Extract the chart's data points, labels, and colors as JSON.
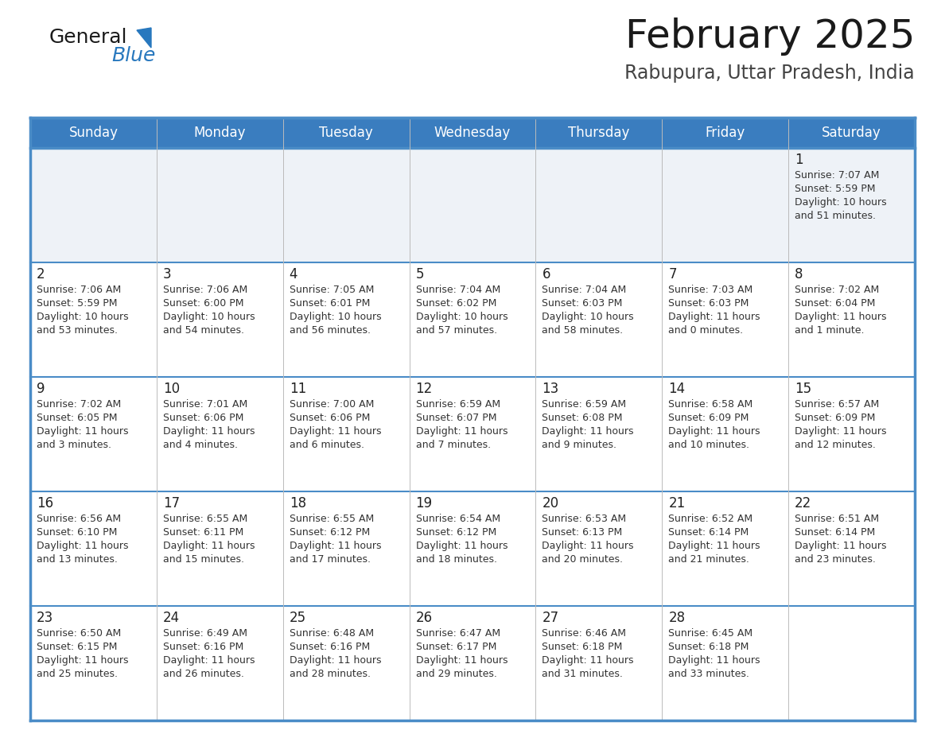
{
  "title": "February 2025",
  "subtitle": "Rabupura, Uttar Pradesh, India",
  "days_of_week": [
    "Sunday",
    "Monday",
    "Tuesday",
    "Wednesday",
    "Thursday",
    "Friday",
    "Saturday"
  ],
  "header_bg": "#3a7dbf",
  "header_text": "#ffffff",
  "cell_bg_alt": "#eef2f7",
  "cell_bg_white": "#ffffff",
  "separator_color": "#4a8cc7",
  "text_color": "#333333",
  "day_num_color": "#222222",
  "title_color": "#1a1a1a",
  "subtitle_color": "#444444",
  "logo_general_color": "#1a1a1a",
  "logo_blue_color": "#2878be",
  "calendar_data": [
    [
      null,
      null,
      null,
      null,
      null,
      null,
      {
        "day": 1,
        "sunrise": "7:07 AM",
        "sunset": "5:59 PM",
        "daylight_line1": "10 hours",
        "daylight_line2": "and 51 minutes."
      }
    ],
    [
      {
        "day": 2,
        "sunrise": "7:06 AM",
        "sunset": "5:59 PM",
        "daylight_line1": "10 hours",
        "daylight_line2": "and 53 minutes."
      },
      {
        "day": 3,
        "sunrise": "7:06 AM",
        "sunset": "6:00 PM",
        "daylight_line1": "10 hours",
        "daylight_line2": "and 54 minutes."
      },
      {
        "day": 4,
        "sunrise": "7:05 AM",
        "sunset": "6:01 PM",
        "daylight_line1": "10 hours",
        "daylight_line2": "and 56 minutes."
      },
      {
        "day": 5,
        "sunrise": "7:04 AM",
        "sunset": "6:02 PM",
        "daylight_line1": "10 hours",
        "daylight_line2": "and 57 minutes."
      },
      {
        "day": 6,
        "sunrise": "7:04 AM",
        "sunset": "6:03 PM",
        "daylight_line1": "10 hours",
        "daylight_line2": "and 58 minutes."
      },
      {
        "day": 7,
        "sunrise": "7:03 AM",
        "sunset": "6:03 PM",
        "daylight_line1": "11 hours",
        "daylight_line2": "and 0 minutes."
      },
      {
        "day": 8,
        "sunrise": "7:02 AM",
        "sunset": "6:04 PM",
        "daylight_line1": "11 hours",
        "daylight_line2": "and 1 minute."
      }
    ],
    [
      {
        "day": 9,
        "sunrise": "7:02 AM",
        "sunset": "6:05 PM",
        "daylight_line1": "11 hours",
        "daylight_line2": "and 3 minutes."
      },
      {
        "day": 10,
        "sunrise": "7:01 AM",
        "sunset": "6:06 PM",
        "daylight_line1": "11 hours",
        "daylight_line2": "and 4 minutes."
      },
      {
        "day": 11,
        "sunrise": "7:00 AM",
        "sunset": "6:06 PM",
        "daylight_line1": "11 hours",
        "daylight_line2": "and 6 minutes."
      },
      {
        "day": 12,
        "sunrise": "6:59 AM",
        "sunset": "6:07 PM",
        "daylight_line1": "11 hours",
        "daylight_line2": "and 7 minutes."
      },
      {
        "day": 13,
        "sunrise": "6:59 AM",
        "sunset": "6:08 PM",
        "daylight_line1": "11 hours",
        "daylight_line2": "and 9 minutes."
      },
      {
        "day": 14,
        "sunrise": "6:58 AM",
        "sunset": "6:09 PM",
        "daylight_line1": "11 hours",
        "daylight_line2": "and 10 minutes."
      },
      {
        "day": 15,
        "sunrise": "6:57 AM",
        "sunset": "6:09 PM",
        "daylight_line1": "11 hours",
        "daylight_line2": "and 12 minutes."
      }
    ],
    [
      {
        "day": 16,
        "sunrise": "6:56 AM",
        "sunset": "6:10 PM",
        "daylight_line1": "11 hours",
        "daylight_line2": "and 13 minutes."
      },
      {
        "day": 17,
        "sunrise": "6:55 AM",
        "sunset": "6:11 PM",
        "daylight_line1": "11 hours",
        "daylight_line2": "and 15 minutes."
      },
      {
        "day": 18,
        "sunrise": "6:55 AM",
        "sunset": "6:12 PM",
        "daylight_line1": "11 hours",
        "daylight_line2": "and 17 minutes."
      },
      {
        "day": 19,
        "sunrise": "6:54 AM",
        "sunset": "6:12 PM",
        "daylight_line1": "11 hours",
        "daylight_line2": "and 18 minutes."
      },
      {
        "day": 20,
        "sunrise": "6:53 AM",
        "sunset": "6:13 PM",
        "daylight_line1": "11 hours",
        "daylight_line2": "and 20 minutes."
      },
      {
        "day": 21,
        "sunrise": "6:52 AM",
        "sunset": "6:14 PM",
        "daylight_line1": "11 hours",
        "daylight_line2": "and 21 minutes."
      },
      {
        "day": 22,
        "sunrise": "6:51 AM",
        "sunset": "6:14 PM",
        "daylight_line1": "11 hours",
        "daylight_line2": "and 23 minutes."
      }
    ],
    [
      {
        "day": 23,
        "sunrise": "6:50 AM",
        "sunset": "6:15 PM",
        "daylight_line1": "11 hours",
        "daylight_line2": "and 25 minutes."
      },
      {
        "day": 24,
        "sunrise": "6:49 AM",
        "sunset": "6:16 PM",
        "daylight_line1": "11 hours",
        "daylight_line2": "and 26 minutes."
      },
      {
        "day": 25,
        "sunrise": "6:48 AM",
        "sunset": "6:16 PM",
        "daylight_line1": "11 hours",
        "daylight_line2": "and 28 minutes."
      },
      {
        "day": 26,
        "sunrise": "6:47 AM",
        "sunset": "6:17 PM",
        "daylight_line1": "11 hours",
        "daylight_line2": "and 29 minutes."
      },
      {
        "day": 27,
        "sunrise": "6:46 AM",
        "sunset": "6:18 PM",
        "daylight_line1": "11 hours",
        "daylight_line2": "and 31 minutes."
      },
      {
        "day": 28,
        "sunrise": "6:45 AM",
        "sunset": "6:18 PM",
        "daylight_line1": "11 hours",
        "daylight_line2": "and 33 minutes."
      },
      null
    ]
  ]
}
